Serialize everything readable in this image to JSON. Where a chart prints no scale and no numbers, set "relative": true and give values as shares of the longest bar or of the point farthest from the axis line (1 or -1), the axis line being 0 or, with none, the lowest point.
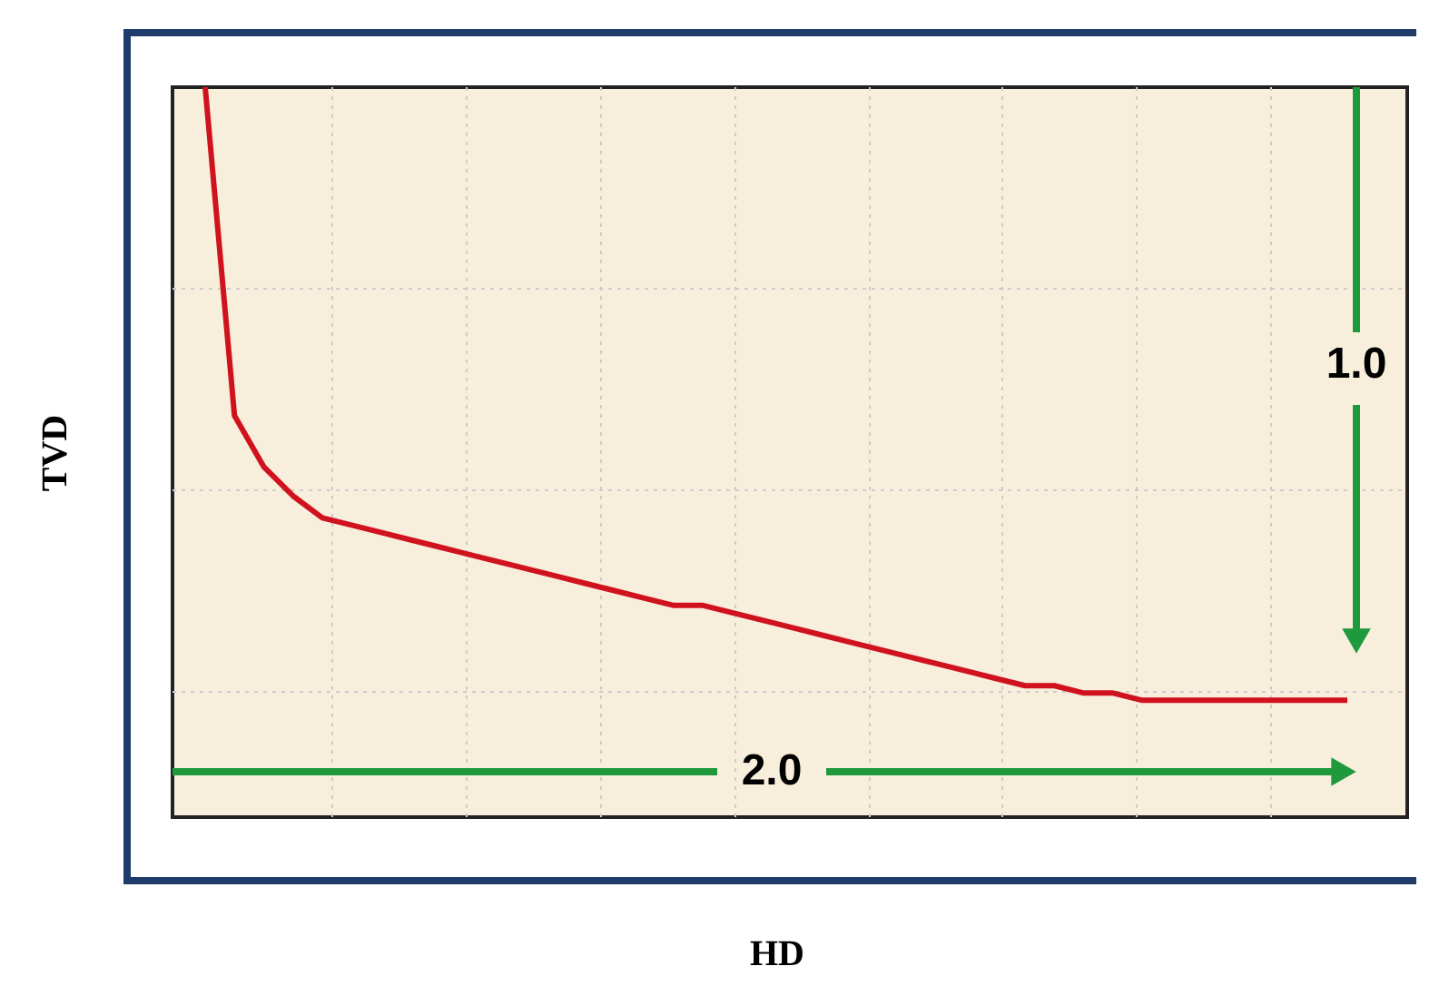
{
  "chart_data": {
    "type": "line",
    "relative": true,
    "xlabel": "HD",
    "ylabel": "TVD",
    "categories": [
      null,
      null,
      null,
      null,
      null,
      null,
      null,
      null,
      null,
      null,
      null,
      null,
      null,
      null,
      null,
      null,
      null,
      null,
      null,
      null,
      null,
      null,
      null,
      null,
      null,
      null,
      null,
      null,
      null,
      null,
      null,
      null,
      null,
      null,
      null,
      null,
      null,
      null,
      null,
      null
    ],
    "series": [
      {
        "color": "#d0121e",
        "values": [
          1.0,
          0.55,
          0.48,
          0.44,
          0.41,
          0.4,
          0.39,
          0.38,
          0.37,
          0.36,
          0.35,
          0.34,
          0.33,
          0.32,
          0.31,
          0.3,
          0.29,
          0.29,
          0.28,
          0.27,
          0.26,
          0.25,
          0.24,
          0.23,
          0.22,
          0.21,
          0.2,
          0.19,
          0.18,
          0.18,
          0.17,
          0.17,
          0.16,
          0.16,
          0.16,
          0.16,
          0.16,
          0.16,
          0.16,
          0.16
        ]
      }
    ],
    "annotations": [
      "1.0",
      "2.0"
    ],
    "grid": true,
    "marker": "none",
    "line_style": "solid"
  }
}
